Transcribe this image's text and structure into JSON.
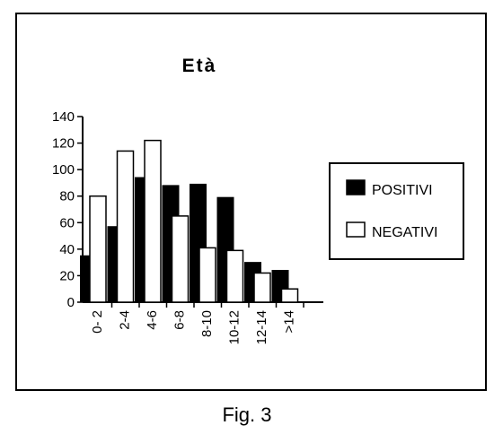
{
  "caption": "Fig. 3",
  "colors": {
    "positive": "#000000",
    "negative": "#ffffff",
    "stroke": "#000000"
  },
  "chart_data": {
    "type": "bar",
    "title": "Età",
    "categories": [
      "0- 2",
      "2-4",
      "4-6",
      "6-8",
      "8-10",
      "10-12",
      "12-14",
      ">14"
    ],
    "series": [
      {
        "name": "POSITIVI",
        "values": [
          35,
          57,
          94,
          88,
          89,
          79,
          30,
          24
        ]
      },
      {
        "name": "NEGATIVI",
        "values": [
          80,
          114,
          122,
          65,
          41,
          39,
          22,
          10
        ]
      }
    ],
    "ylim": [
      0,
      140
    ],
    "yticks": [
      0,
      20,
      40,
      60,
      80,
      100,
      120,
      140
    ],
    "xlabel": "",
    "ylabel": "",
    "grid": false,
    "legend": "right"
  }
}
